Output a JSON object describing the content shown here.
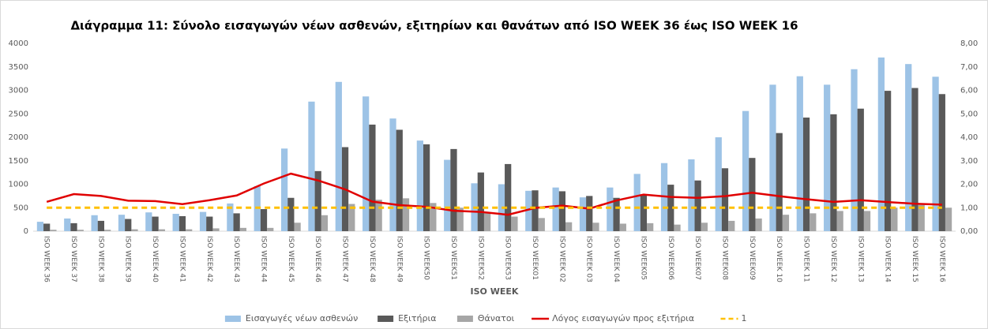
{
  "chart_data": {
    "type": "bar",
    "title": "Διάγραμμα 11: Σύνολο εισαγωγών νέων ασθενών, εξιτηρίων και θανάτων από ISO WEEK 36 έως ISO WEEK 16",
    "x_label": "ISO WEEK",
    "categories": [
      "ISO WEEK 36",
      "ISO WEEK 37",
      "ISO WEEK 38",
      "ISO WEEK 39",
      "ISO WEEK 40",
      "ISO WEEK 41",
      "ISO WEEK 42",
      "ISO WEEK 43",
      "ISO WEEK 44",
      "ISO WEEK 45",
      "ISO WEEK 46",
      "ISO WEEK 47",
      "ISO WEEK 48",
      "ISO WEEK 49",
      "ISO WEEK50",
      "ISO WEEK51",
      "ISO WEEK52",
      "ISO WEEK53",
      "ISO WEEK01",
      "ISO WEEK 02",
      "ISO WEEK 03",
      "ISO WEEK 04",
      "ISO WEEK05",
      "ISO WEEK06",
      "ISO WEEK07",
      "ISO WEEK08",
      "ISO WEEK09",
      "ISO WEEK 10",
      "ISO WEEK 11",
      "ISO WEEK 12",
      "ISO WEEK 13",
      "ISO WEEK 14",
      "ISO WEEK 15",
      "ISO WEEK 16"
    ],
    "series": [
      {
        "name": "Εισαγωγές νέων ασθενών",
        "type": "bar",
        "color": "#9dc3e6",
        "values": [
          200,
          270,
          340,
          350,
          400,
          370,
          410,
          590,
          960,
          1760,
          2760,
          3180,
          2870,
          2400,
          1930,
          1520,
          1020,
          1000,
          860,
          930,
          720,
          930,
          1220,
          1450,
          1530,
          2000,
          2560,
          3120,
          3300,
          3120,
          3450,
          3700,
          3560,
          3290
        ]
      },
      {
        "name": "Εξιτήρια",
        "type": "bar",
        "color": "#595959",
        "values": [
          160,
          170,
          220,
          260,
          310,
          320,
          310,
          380,
          470,
          710,
          1280,
          1790,
          2270,
          2160,
          1850,
          1750,
          1250,
          1430,
          870,
          850,
          750,
          710,
          780,
          990,
          1080,
          1340,
          1560,
          2090,
          2420,
          2490,
          2610,
          2990,
          3050,
          2920
        ]
      },
      {
        "name": "Θάνατοι",
        "type": "bar",
        "color": "#a6a6a6",
        "values": [
          30,
          30,
          30,
          40,
          40,
          40,
          60,
          70,
          70,
          180,
          340,
          580,
          670,
          700,
          600,
          500,
          400,
          310,
          280,
          190,
          180,
          160,
          170,
          140,
          180,
          220,
          270,
          350,
          380,
          430,
          430,
          500,
          560,
          500
        ]
      },
      {
        "name": "Λόγος εισαγωγών προς εξιτήρια",
        "type": "line",
        "axis": "y2",
        "color": "#e00000",
        "values": [
          1.25,
          1.58,
          1.5,
          1.3,
          1.28,
          1.15,
          1.32,
          1.52,
          2.03,
          2.45,
          2.16,
          1.78,
          1.26,
          1.11,
          1.04,
          0.87,
          0.82,
          0.7,
          0.99,
          1.09,
          0.96,
          1.31,
          1.56,
          1.46,
          1.42,
          1.49,
          1.64,
          1.49,
          1.36,
          1.25,
          1.32,
          1.24,
          1.17,
          1.13
        ]
      },
      {
        "name": "1",
        "type": "line",
        "axis": "y2",
        "dashed": true,
        "color": "#ffc000",
        "values": [
          1,
          1,
          1,
          1,
          1,
          1,
          1,
          1,
          1,
          1,
          1,
          1,
          1,
          1,
          1,
          1,
          1,
          1,
          1,
          1,
          1,
          1,
          1,
          1,
          1,
          1,
          1,
          1,
          1,
          1,
          1,
          1,
          1,
          1
        ]
      }
    ],
    "ylim": [
      0,
      4000
    ],
    "yticks": [
      0,
      500,
      1000,
      1500,
      2000,
      2500,
      3000,
      3500,
      4000
    ],
    "y2lim": [
      0,
      8
    ],
    "y2ticks": [
      {
        "value": 0,
        "label": "0,00"
      },
      {
        "value": 1,
        "label": "1,00"
      },
      {
        "value": 2,
        "label": "2,00"
      },
      {
        "value": 3,
        "label": "3,00"
      },
      {
        "value": 4,
        "label": "4,00"
      },
      {
        "value": 5,
        "label": "5,00"
      },
      {
        "value": 6,
        "label": "6,00"
      },
      {
        "value": 7,
        "label": "7,00"
      },
      {
        "value": 8,
        "label": "8,00"
      }
    ],
    "grid": false
  }
}
